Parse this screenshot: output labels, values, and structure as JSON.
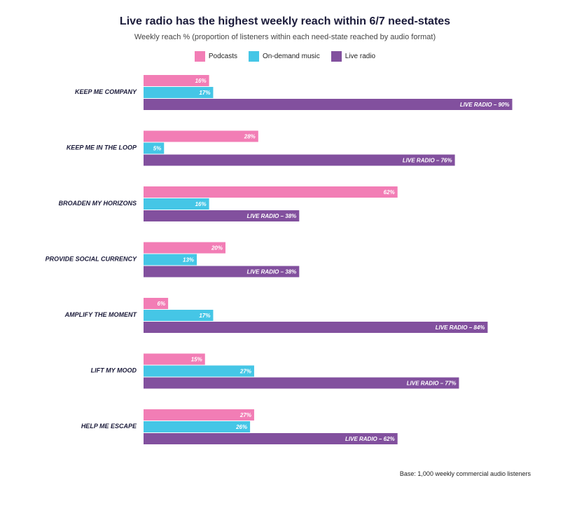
{
  "chart_data": {
    "type": "bar",
    "orientation": "horizontal",
    "title": "Live radio has the highest weekly reach within 6/7 need-states",
    "subtitle": "Weekly reach % (proportion of listeners within each need-state reached by audio format)",
    "categories": [
      "KEEP ME COMPANY",
      "KEEP ME IN THE LOOP",
      "BROADEN MY HORIZONS",
      "PROVIDE SOCIAL CURRENCY",
      "AMPLIFY THE MOMENT",
      "LIFT MY MOOD",
      "HELP ME ESCAPE"
    ],
    "series": [
      {
        "name": "Podcasts",
        "color": "#f27db5",
        "values": [
          16,
          28,
          62,
          20,
          6,
          15,
          27
        ],
        "labels": [
          "16%",
          "28%",
          "62%",
          "20%",
          "6%",
          "15%",
          "27%"
        ]
      },
      {
        "name": "On-demand music",
        "color": "#45c6e6",
        "values": [
          17,
          5,
          16,
          13,
          17,
          27,
          26
        ],
        "labels": [
          "17%",
          "5%",
          "16%",
          "13%",
          "17%",
          "27%",
          "26%"
        ]
      },
      {
        "name": "Live radio",
        "color": "#82509e",
        "values": [
          90,
          76,
          38,
          38,
          84,
          77,
          62
        ],
        "labels": [
          "LIVE RADIO – 90%",
          "LIVE RADIO – 76%",
          "LIVE RADIO – 38%",
          "LIVE RADIO – 38%",
          "LIVE RADIO – 84%",
          "LIVE RADIO – 77%",
          "LIVE RADIO – 62%"
        ]
      }
    ],
    "xlim": [
      0,
      100
    ],
    "grid": false,
    "legend_position": "top-center"
  },
  "footer": {
    "base_note": "Base: 1,000 weekly commercial audio listeners"
  }
}
